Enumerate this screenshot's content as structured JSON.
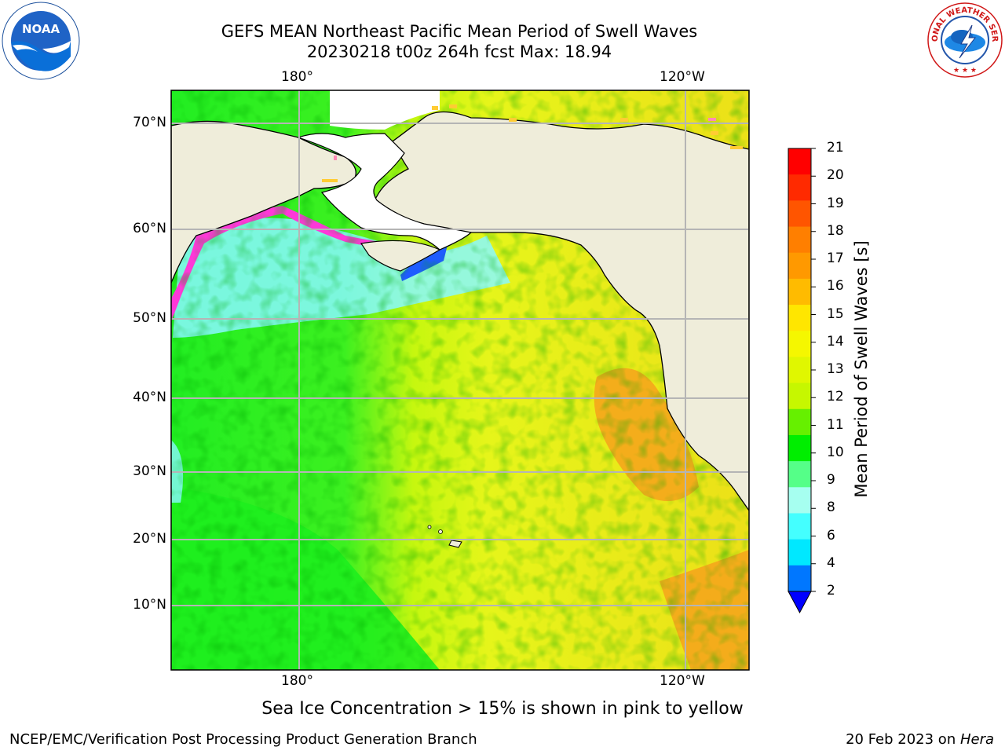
{
  "title": {
    "line1": "GEFS MEAN Northeast Pacific Mean Period of Swell Waves",
    "line2": "20230218 t00z 264h fcst   Max: 18.94"
  },
  "map": {
    "lon_labels_top": [
      "180°",
      "120°W"
    ],
    "lon_labels_bottom": [
      "180°",
      "120°W"
    ],
    "lat_labels": [
      "70°N",
      "60°N",
      "50°N",
      "40°N",
      "30°N",
      "20°N",
      "10°N"
    ],
    "colors": {
      "land": "#efedda",
      "ocean_green": "#22ee22",
      "ocean_yellow": "#e6f51a",
      "ocean_orange": "#f6a21c",
      "sea_ice_pink": "#ff38d8",
      "cyan": "#88f8ff"
    }
  },
  "colorbar": {
    "label": "Mean Period of Swell Waves [s]",
    "ticks": [
      "21",
      "20",
      "19",
      "18",
      "17",
      "16",
      "15",
      "14",
      "13",
      "12",
      "11",
      "10",
      "9",
      "8",
      "6",
      "4",
      "2"
    ],
    "colors_top_to_bottom": [
      "#ff0000",
      "#ff2a00",
      "#ff5500",
      "#ff7f00",
      "#ff9900",
      "#ffbb00",
      "#ffe600",
      "#f5f700",
      "#e0f700",
      "#c6f700",
      "#66f000",
      "#00ee00",
      "#55ff88",
      "#a6fff0",
      "#44ffff",
      "#00e8ff",
      "#0077ff"
    ],
    "extend_color": "#0000ff"
  },
  "caption": "Sea Ice Concentration > 15% is shown in pink to yellow",
  "footer": {
    "left": "NCEP/EMC/Verification Post Processing Product Generation Branch",
    "right_prefix": "20 Feb 2023 on ",
    "right_host": "Hera"
  },
  "logos": {
    "noaa_text": "NOAA",
    "nws_text": "NATIONAL WEATHER SERVICE"
  }
}
